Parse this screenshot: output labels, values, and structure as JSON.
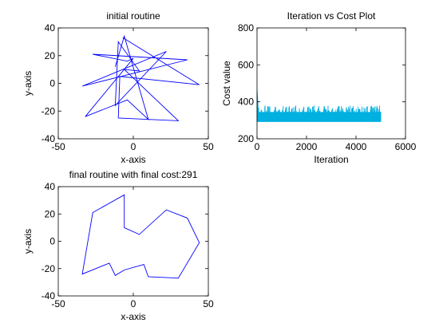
{
  "chart_data": [
    {
      "type": "line",
      "title": "initial routine",
      "xlabel": "x-axis",
      "ylabel": "y-axis",
      "xlim": [
        -50,
        50
      ],
      "ylim": [
        -40,
        40
      ],
      "xticks": [
        -50,
        0,
        50
      ],
      "yticks": [
        -40,
        -20,
        0,
        20,
        40
      ],
      "grid": false,
      "series": [
        {
          "color": "#0000ff",
          "points": [
            [
              -12,
              12
            ],
            [
              -6,
              34
            ],
            [
              10,
              -26
            ],
            [
              -4,
              -12
            ],
            [
              -32,
              -24
            ],
            [
              0,
              18
            ],
            [
              -4,
              16
            ],
            [
              -27,
              21
            ],
            [
              36,
              17
            ],
            [
              -34,
              -2
            ],
            [
              22,
              23
            ],
            [
              -12,
              -16
            ],
            [
              -10,
              30
            ],
            [
              4,
              9
            ],
            [
              -6,
              10
            ],
            [
              30,
              -27
            ],
            [
              -10,
              -25
            ],
            [
              -9,
              5
            ],
            [
              44,
              -1
            ],
            [
              -7,
              33
            ]
          ]
        }
      ]
    },
    {
      "type": "line",
      "title": "Iteration vs Cost Plot",
      "xlabel": "Iteration",
      "ylabel": "Cost value",
      "xlim": [
        0,
        6000
      ],
      "ylim": [
        200,
        800
      ],
      "xticks": [
        0,
        2000,
        4000,
        6000
      ],
      "yticks": [
        200,
        400,
        600,
        800
      ],
      "grid": false,
      "series": [
        {
          "color": "#00b0e0",
          "x_start": 0,
          "x_end": 5000,
          "floor": 291,
          "typical_high": 345,
          "peak": 465
        }
      ]
    },
    {
      "type": "line",
      "title": "final routine with final cost:291",
      "xlabel": "x-axis",
      "ylabel": "y-axis",
      "xlim": [
        -50,
        50
      ],
      "ylim": [
        -40,
        40
      ],
      "xticks": [
        -50,
        0,
        50
      ],
      "yticks": [
        -40,
        -20,
        0,
        20,
        40
      ],
      "grid": false,
      "series": [
        {
          "color": "#0000ff",
          "closed": true,
          "points": [
            [
              -27,
              21
            ],
            [
              -6,
              34
            ],
            [
              -6,
              10
            ],
            [
              4,
              5
            ],
            [
              22,
              23
            ],
            [
              36,
              17
            ],
            [
              44,
              -1
            ],
            [
              30,
              -27
            ],
            [
              10,
              -26
            ],
            [
              7,
              -17
            ],
            [
              -6,
              -21
            ],
            [
              -12,
              -25
            ],
            [
              -16,
              -16
            ],
            [
              -34,
              -24
            ]
          ]
        }
      ]
    }
  ]
}
